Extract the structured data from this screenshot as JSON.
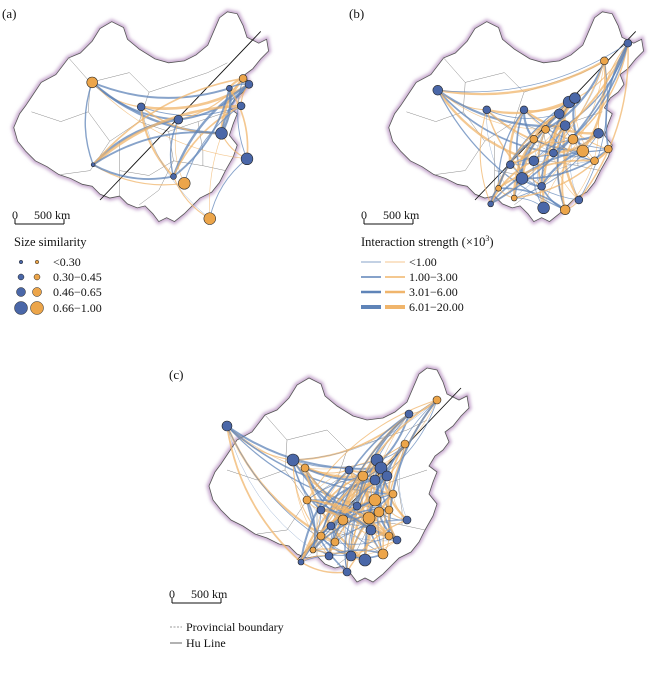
{
  "panels": [
    {
      "label": "(a)",
      "scale_zero": "0",
      "scale_text": "500 km"
    },
    {
      "label": "(b)",
      "scale_zero": "0",
      "scale_text": "500 km"
    },
    {
      "label": "(c)",
      "scale_zero": "0",
      "scale_text": "500 km"
    }
  ],
  "legend_size": {
    "title": "Size similarity",
    "items": [
      "<0.30",
      "0.30−0.45",
      "0.46−0.65",
      "0.66−1.00"
    ]
  },
  "legend_interaction": {
    "title_main": "Interaction strength (×10",
    "title_sup": "3",
    "title_end": ")",
    "items": [
      "<1.00",
      "1.00−3.00",
      "3.01−6.00",
      "6.01−20.00"
    ]
  },
  "legend_lines": {
    "items": [
      "Provincial boundary",
      "Hu Line"
    ]
  },
  "colors": {
    "blue": "#4a67a8",
    "orange": "#eca54a",
    "blue_link": "#5f84b8",
    "orange_link": "#f0b56c",
    "border_glow": "#c7a9cf",
    "boundary": "#777777"
  }
}
